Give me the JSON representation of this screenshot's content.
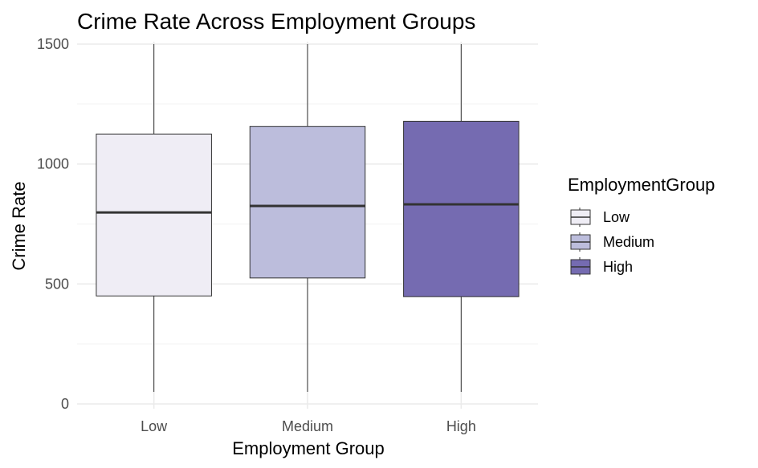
{
  "chart_data": {
    "type": "box",
    "title": "Crime Rate Across Employment Groups",
    "xlabel": "Employment Group",
    "ylabel": "Crime Rate",
    "ylim": [
      -20,
      1510
    ],
    "yticks": [
      0,
      500,
      1000,
      1500
    ],
    "categories": [
      "Low",
      "Medium",
      "High"
    ],
    "boxes": [
      {
        "category": "Low",
        "min": 50,
        "q1": 450,
        "median": 798,
        "q3": 1125,
        "max": 1500,
        "fill": "#efedf5"
      },
      {
        "category": "Medium",
        "min": 50,
        "q1": 525,
        "median": 825,
        "q3": 1157,
        "max": 1500,
        "fill": "#bcbddc"
      },
      {
        "category": "High",
        "min": 50,
        "q1": 447,
        "median": 832,
        "q3": 1178,
        "max": 1500,
        "fill": "#756bb1"
      }
    ],
    "legend": {
      "title": "EmploymentGroup",
      "position": "right",
      "entries": [
        {
          "label": "Low",
          "fill": "#efedf5"
        },
        {
          "label": "Medium",
          "fill": "#bcbddc"
        },
        {
          "label": "High",
          "fill": "#756bb1"
        }
      ]
    },
    "grid": true
  }
}
